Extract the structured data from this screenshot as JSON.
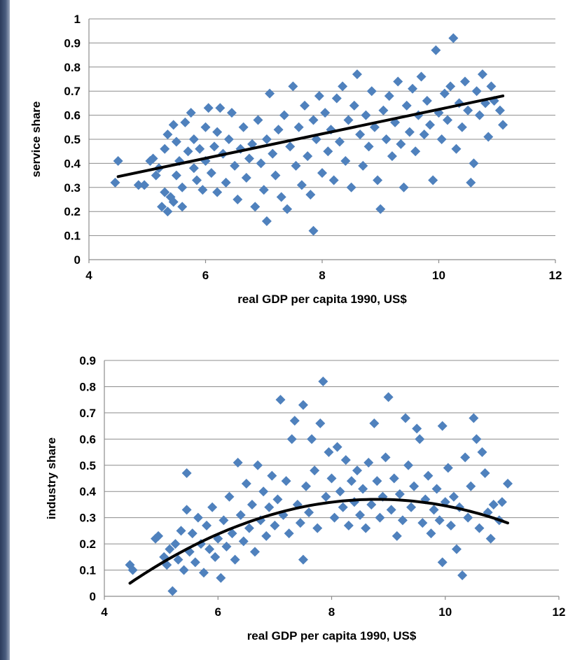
{
  "chart_data": [
    {
      "type": "scatter",
      "title": "",
      "xlabel": "real GDP per capita 1990, US$",
      "ylabel": "service share",
      "xlim": [
        4,
        12
      ],
      "ylim": [
        0,
        1
      ],
      "x_ticks": [
        "4",
        "6",
        "8",
        "10",
        "12"
      ],
      "y_ticks": [
        "0",
        "0.1",
        "0.2",
        "0.3",
        "0.4",
        "0.5",
        "0.6",
        "0.7",
        "0.8",
        "0.9",
        "1"
      ],
      "grid": "horizontal",
      "marker_color": "#4f81bd",
      "trend": {
        "type": "linear",
        "x": [
          4.5,
          11.1
        ],
        "y": [
          0.345,
          0.68
        ]
      },
      "series": [
        {
          "points": [
            [
              4.45,
              0.32
            ],
            [
              4.5,
              0.41
            ],
            [
              4.85,
              0.31
            ],
            [
              4.95,
              0.31
            ],
            [
              5.05,
              0.41
            ],
            [
              5.1,
              0.42
            ],
            [
              5.15,
              0.35
            ],
            [
              5.2,
              0.38
            ],
            [
              5.25,
              0.22
            ],
            [
              5.3,
              0.28
            ],
            [
              5.3,
              0.46
            ],
            [
              5.35,
              0.52
            ],
            [
              5.35,
              0.2
            ],
            [
              5.4,
              0.26
            ],
            [
              5.45,
              0.56
            ],
            [
              5.45,
              0.24
            ],
            [
              5.5,
              0.35
            ],
            [
              5.5,
              0.49
            ],
            [
              5.55,
              0.41
            ],
            [
              5.6,
              0.3
            ],
            [
              5.6,
              0.22
            ],
            [
              5.65,
              0.57
            ],
            [
              5.7,
              0.45
            ],
            [
              5.75,
              0.61
            ],
            [
              5.8,
              0.38
            ],
            [
              5.8,
              0.5
            ],
            [
              5.85,
              0.33
            ],
            [
              5.9,
              0.46
            ],
            [
              5.95,
              0.29
            ],
            [
              6.0,
              0.55
            ],
            [
              6.0,
              0.41
            ],
            [
              6.05,
              0.63
            ],
            [
              6.1,
              0.36
            ],
            [
              6.15,
              0.47
            ],
            [
              6.2,
              0.28
            ],
            [
              6.2,
              0.53
            ],
            [
              6.25,
              0.63
            ],
            [
              6.3,
              0.44
            ],
            [
              6.35,
              0.32
            ],
            [
              6.4,
              0.5
            ],
            [
              6.45,
              0.61
            ],
            [
              6.5,
              0.39
            ],
            [
              6.55,
              0.25
            ],
            [
              6.6,
              0.46
            ],
            [
              6.65,
              0.55
            ],
            [
              6.7,
              0.34
            ],
            [
              6.75,
              0.42
            ],
            [
              6.8,
              0.48
            ],
            [
              6.85,
              0.22
            ],
            [
              6.9,
              0.58
            ],
            [
              6.95,
              0.4
            ],
            [
              7.0,
              0.29
            ],
            [
              7.05,
              0.16
            ],
            [
              7.05,
              0.5
            ],
            [
              7.1,
              0.69
            ],
            [
              7.15,
              0.44
            ],
            [
              7.2,
              0.35
            ],
            [
              7.25,
              0.54
            ],
            [
              7.3,
              0.26
            ],
            [
              7.35,
              0.6
            ],
            [
              7.4,
              0.21
            ],
            [
              7.45,
              0.47
            ],
            [
              7.5,
              0.72
            ],
            [
              7.55,
              0.39
            ],
            [
              7.6,
              0.55
            ],
            [
              7.65,
              0.31
            ],
            [
              7.7,
              0.64
            ],
            [
              7.75,
              0.43
            ],
            [
              7.8,
              0.27
            ],
            [
              7.85,
              0.12
            ],
            [
              7.85,
              0.58
            ],
            [
              7.9,
              0.5
            ],
            [
              7.95,
              0.68
            ],
            [
              8.0,
              0.36
            ],
            [
              8.05,
              0.61
            ],
            [
              8.1,
              0.45
            ],
            [
              8.15,
              0.54
            ],
            [
              8.2,
              0.33
            ],
            [
              8.25,
              0.67
            ],
            [
              8.3,
              0.49
            ],
            [
              8.35,
              0.72
            ],
            [
              8.4,
              0.41
            ],
            [
              8.45,
              0.58
            ],
            [
              8.5,
              0.3
            ],
            [
              8.55,
              0.64
            ],
            [
              8.6,
              0.77
            ],
            [
              8.65,
              0.52
            ],
            [
              8.7,
              0.39
            ],
            [
              8.75,
              0.6
            ],
            [
              8.8,
              0.47
            ],
            [
              8.85,
              0.7
            ],
            [
              8.9,
              0.55
            ],
            [
              8.95,
              0.33
            ],
            [
              9.0,
              0.21
            ],
            [
              9.05,
              0.62
            ],
            [
              9.1,
              0.5
            ],
            [
              9.15,
              0.68
            ],
            [
              9.2,
              0.43
            ],
            [
              9.25,
              0.57
            ],
            [
              9.3,
              0.74
            ],
            [
              9.35,
              0.48
            ],
            [
              9.4,
              0.3
            ],
            [
              9.45,
              0.64
            ],
            [
              9.5,
              0.53
            ],
            [
              9.55,
              0.71
            ],
            [
              9.6,
              0.45
            ],
            [
              9.65,
              0.6
            ],
            [
              9.7,
              0.76
            ],
            [
              9.75,
              0.52
            ],
            [
              9.8,
              0.66
            ],
            [
              9.85,
              0.56
            ],
            [
              9.9,
              0.33
            ],
            [
              9.95,
              0.87
            ],
            [
              10.0,
              0.61
            ],
            [
              10.05,
              0.5
            ],
            [
              10.1,
              0.69
            ],
            [
              10.15,
              0.58
            ],
            [
              10.2,
              0.72
            ],
            [
              10.25,
              0.92
            ],
            [
              10.3,
              0.46
            ],
            [
              10.35,
              0.65
            ],
            [
              10.4,
              0.55
            ],
            [
              10.45,
              0.74
            ],
            [
              10.5,
              0.62
            ],
            [
              10.55,
              0.32
            ],
            [
              10.6,
              0.4
            ],
            [
              10.65,
              0.7
            ],
            [
              10.7,
              0.6
            ],
            [
              10.75,
              0.77
            ],
            [
              10.8,
              0.65
            ],
            [
              10.85,
              0.51
            ],
            [
              10.9,
              0.72
            ],
            [
              10.95,
              0.66
            ],
            [
              11.05,
              0.62
            ],
            [
              11.1,
              0.56
            ]
          ]
        }
      ]
    },
    {
      "type": "scatter",
      "title": "",
      "xlabel": "real GDP per capita 1990, US$",
      "ylabel": "industry  share",
      "xlim": [
        4,
        12
      ],
      "ylim": [
        0,
        0.9
      ],
      "x_ticks": [
        "4",
        "6",
        "8",
        "10",
        "12"
      ],
      "y_ticks": [
        "0",
        "0.1",
        "0.2",
        "0.3",
        "0.4",
        "0.5",
        "0.6",
        "0.7",
        "0.8",
        "0.9"
      ],
      "grid": "horizontal",
      "marker_color": "#4f81bd",
      "trend": {
        "type": "quadratic",
        "x": [
          4.45,
          11.1
        ],
        "peak_x": 8.8,
        "peak_y": 0.37,
        "y_start": 0.05,
        "y_end": 0.28
      },
      "series": [
        {
          "points": [
            [
              4.45,
              0.12
            ],
            [
              4.5,
              0.1
            ],
            [
              4.9,
              0.22
            ],
            [
              4.95,
              0.23
            ],
            [
              5.05,
              0.15
            ],
            [
              5.1,
              0.12
            ],
            [
              5.15,
              0.18
            ],
            [
              5.2,
              0.02
            ],
            [
              5.25,
              0.2
            ],
            [
              5.3,
              0.14
            ],
            [
              5.35,
              0.25
            ],
            [
              5.4,
              0.1
            ],
            [
              5.45,
              0.33
            ],
            [
              5.45,
              0.47
            ],
            [
              5.5,
              0.17
            ],
            [
              5.55,
              0.24
            ],
            [
              5.6,
              0.13
            ],
            [
              5.65,
              0.3
            ],
            [
              5.7,
              0.2
            ],
            [
              5.75,
              0.09
            ],
            [
              5.8,
              0.27
            ],
            [
              5.85,
              0.18
            ],
            [
              5.9,
              0.34
            ],
            [
              5.95,
              0.15
            ],
            [
              6.0,
              0.22
            ],
            [
              6.05,
              0.07
            ],
            [
              6.1,
              0.29
            ],
            [
              6.15,
              0.19
            ],
            [
              6.2,
              0.38
            ],
            [
              6.25,
              0.24
            ],
            [
              6.3,
              0.14
            ],
            [
              6.35,
              0.51
            ],
            [
              6.4,
              0.31
            ],
            [
              6.45,
              0.21
            ],
            [
              6.5,
              0.43
            ],
            [
              6.55,
              0.26
            ],
            [
              6.6,
              0.35
            ],
            [
              6.65,
              0.17
            ],
            [
              6.7,
              0.5
            ],
            [
              6.75,
              0.29
            ],
            [
              6.8,
              0.4
            ],
            [
              6.85,
              0.23
            ],
            [
              6.9,
              0.34
            ],
            [
              6.95,
              0.46
            ],
            [
              7.0,
              0.27
            ],
            [
              7.05,
              0.37
            ],
            [
              7.1,
              0.75
            ],
            [
              7.15,
              0.31
            ],
            [
              7.2,
              0.44
            ],
            [
              7.25,
              0.24
            ],
            [
              7.3,
              0.6
            ],
            [
              7.35,
              0.67
            ],
            [
              7.4,
              0.35
            ],
            [
              7.45,
              0.28
            ],
            [
              7.5,
              0.73
            ],
            [
              7.5,
              0.14
            ],
            [
              7.55,
              0.42
            ],
            [
              7.6,
              0.32
            ],
            [
              7.65,
              0.6
            ],
            [
              7.7,
              0.48
            ],
            [
              7.75,
              0.26
            ],
            [
              7.8,
              0.66
            ],
            [
              7.85,
              0.82
            ],
            [
              7.9,
              0.38
            ],
            [
              7.95,
              0.55
            ],
            [
              8.0,
              0.45
            ],
            [
              8.05,
              0.3
            ],
            [
              8.1,
              0.57
            ],
            [
              8.15,
              0.4
            ],
            [
              8.2,
              0.34
            ],
            [
              8.25,
              0.52
            ],
            [
              8.3,
              0.27
            ],
            [
              8.35,
              0.44
            ],
            [
              8.4,
              0.36
            ],
            [
              8.45,
              0.48
            ],
            [
              8.5,
              0.31
            ],
            [
              8.55,
              0.41
            ],
            [
              8.6,
              0.26
            ],
            [
              8.65,
              0.51
            ],
            [
              8.7,
              0.35
            ],
            [
              8.75,
              0.66
            ],
            [
              8.8,
              0.44
            ],
            [
              8.85,
              0.3
            ],
            [
              8.9,
              0.38
            ],
            [
              8.95,
              0.53
            ],
            [
              9.0,
              0.76
            ],
            [
              9.05,
              0.33
            ],
            [
              9.1,
              0.45
            ],
            [
              9.15,
              0.23
            ],
            [
              9.2,
              0.39
            ],
            [
              9.25,
              0.29
            ],
            [
              9.3,
              0.68
            ],
            [
              9.35,
              0.5
            ],
            [
              9.4,
              0.34
            ],
            [
              9.45,
              0.42
            ],
            [
              9.5,
              0.64
            ],
            [
              9.55,
              0.6
            ],
            [
              9.6,
              0.28
            ],
            [
              9.65,
              0.37
            ],
            [
              9.7,
              0.46
            ],
            [
              9.75,
              0.24
            ],
            [
              9.8,
              0.33
            ],
            [
              9.85,
              0.41
            ],
            [
              9.9,
              0.29
            ],
            [
              9.95,
              0.65
            ],
            [
              9.95,
              0.13
            ],
            [
              10.0,
              0.36
            ],
            [
              10.05,
              0.49
            ],
            [
              10.1,
              0.27
            ],
            [
              10.15,
              0.38
            ],
            [
              10.2,
              0.18
            ],
            [
              10.25,
              0.34
            ],
            [
              10.3,
              0.08
            ],
            [
              10.35,
              0.53
            ],
            [
              10.4,
              0.3
            ],
            [
              10.45,
              0.42
            ],
            [
              10.5,
              0.68
            ],
            [
              10.55,
              0.6
            ],
            [
              10.6,
              0.26
            ],
            [
              10.65,
              0.55
            ],
            [
              10.7,
              0.47
            ],
            [
              10.75,
              0.32
            ],
            [
              10.8,
              0.22
            ],
            [
              10.85,
              0.35
            ],
            [
              10.95,
              0.29
            ],
            [
              11.0,
              0.36
            ],
            [
              11.1,
              0.43
            ]
          ]
        }
      ]
    }
  ]
}
